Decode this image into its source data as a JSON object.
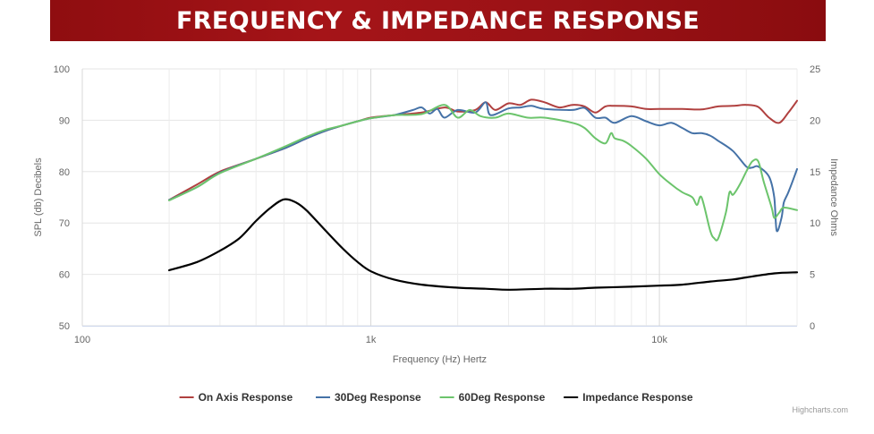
{
  "header": {
    "title": "FREQUENCY & IMPEDANCE RESPONSE"
  },
  "credit": "Highcharts.com",
  "chart_data": {
    "type": "line",
    "x_axis": {
      "label": "Frequency (Hz) Hertz",
      "scale": "log",
      "range": [
        100,
        30000
      ],
      "major_ticks": [
        100,
        1000,
        10000
      ],
      "tick_labels": [
        "100",
        "1k",
        "10k"
      ],
      "minor_grid": [
        200,
        300,
        400,
        500,
        600,
        700,
        800,
        900,
        2000,
        3000,
        4000,
        5000,
        6000,
        7000,
        8000,
        9000,
        20000,
        30000
      ]
    },
    "y_axis_left": {
      "label": "SPL (db) Decibels",
      "range": [
        50,
        100
      ],
      "ticks": [
        50,
        60,
        70,
        80,
        90,
        100
      ]
    },
    "y_axis_right": {
      "label": "Impedance Ohms",
      "range": [
        0,
        25
      ],
      "ticks": [
        0,
        5,
        10,
        15,
        20,
        25
      ]
    },
    "grid": true,
    "legend_position": "bottom-center",
    "series": [
      {
        "name": "On Axis Response",
        "color": "#b0403f",
        "axis": "left",
        "points": [
          [
            200,
            74.5
          ],
          [
            250,
            77.5
          ],
          [
            300,
            80
          ],
          [
            400,
            82.5
          ],
          [
            500,
            84.5
          ],
          [
            600,
            86.5
          ],
          [
            700,
            88
          ],
          [
            800,
            89
          ],
          [
            900,
            89.8
          ],
          [
            1000,
            90.5
          ],
          [
            1200,
            91
          ],
          [
            1500,
            91.5
          ],
          [
            1800,
            92.5
          ],
          [
            2000,
            91.7
          ],
          [
            2300,
            92
          ],
          [
            2500,
            93.5
          ],
          [
            2700,
            92
          ],
          [
            3000,
            93.3
          ],
          [
            3300,
            93
          ],
          [
            3600,
            94
          ],
          [
            4000,
            93.5
          ],
          [
            4500,
            92.5
          ],
          [
            5000,
            93
          ],
          [
            5500,
            92.7
          ],
          [
            6000,
            91.5
          ],
          [
            6500,
            92.7
          ],
          [
            7000,
            92.8
          ],
          [
            8000,
            92.7
          ],
          [
            9000,
            92.2
          ],
          [
            10000,
            92.2
          ],
          [
            12000,
            92.2
          ],
          [
            14000,
            92.1
          ],
          [
            16000,
            92.7
          ],
          [
            18000,
            92.8
          ],
          [
            20000,
            93
          ],
          [
            22000,
            92.6
          ],
          [
            24000,
            90.5
          ],
          [
            26000,
            89.5
          ],
          [
            28000,
            91.5
          ],
          [
            30000,
            93.8
          ]
        ]
      },
      {
        "name": "30Deg Response",
        "color": "#4572a7",
        "axis": "left",
        "points": [
          [
            200,
            74.5
          ],
          [
            250,
            77
          ],
          [
            300,
            79.8
          ],
          [
            400,
            82.5
          ],
          [
            500,
            84.5
          ],
          [
            600,
            86.5
          ],
          [
            700,
            88
          ],
          [
            800,
            89
          ],
          [
            900,
            89.8
          ],
          [
            1000,
            90.4
          ],
          [
            1200,
            91
          ],
          [
            1400,
            92
          ],
          [
            1500,
            92.5
          ],
          [
            1600,
            91.3
          ],
          [
            1700,
            92.2
          ],
          [
            1800,
            90.5
          ],
          [
            2000,
            92
          ],
          [
            2300,
            91.5
          ],
          [
            2500,
            93.5
          ],
          [
            2600,
            91
          ],
          [
            3000,
            92.3
          ],
          [
            3300,
            92.5
          ],
          [
            3600,
            92.8
          ],
          [
            4000,
            92.2
          ],
          [
            5000,
            92
          ],
          [
            5500,
            92.4
          ],
          [
            6000,
            90.5
          ],
          [
            6500,
            90.5
          ],
          [
            7000,
            89.5
          ],
          [
            8000,
            90.8
          ],
          [
            9000,
            89.8
          ],
          [
            10000,
            89
          ],
          [
            11000,
            89.5
          ],
          [
            12000,
            88.5
          ],
          [
            13000,
            87.5
          ],
          [
            14000,
            87.5
          ],
          [
            15000,
            87
          ],
          [
            16000,
            86
          ],
          [
            18000,
            84
          ],
          [
            20000,
            81
          ],
          [
            21000,
            80.8
          ],
          [
            22000,
            81
          ],
          [
            24000,
            79
          ],
          [
            25000,
            75
          ],
          [
            25500,
            68.5
          ],
          [
            26500,
            71
          ],
          [
            27000,
            74
          ],
          [
            28000,
            76
          ],
          [
            30000,
            80.5
          ]
        ]
      },
      {
        "name": "60Deg Response",
        "color": "#6cc46c",
        "axis": "left",
        "points": [
          [
            200,
            74.4
          ],
          [
            250,
            77
          ],
          [
            300,
            79.7
          ],
          [
            400,
            82.5
          ],
          [
            500,
            84.8
          ],
          [
            600,
            86.8
          ],
          [
            700,
            88.2
          ],
          [
            800,
            89
          ],
          [
            900,
            89.8
          ],
          [
            1000,
            90.4
          ],
          [
            1200,
            91
          ],
          [
            1500,
            91.2
          ],
          [
            1800,
            93
          ],
          [
            2000,
            90.5
          ],
          [
            2200,
            92
          ],
          [
            2400,
            90.8
          ],
          [
            2700,
            90.5
          ],
          [
            3000,
            91.3
          ],
          [
            3500,
            90.5
          ],
          [
            4000,
            90.5
          ],
          [
            5000,
            89.5
          ],
          [
            5500,
            88.5
          ],
          [
            6000,
            86.5
          ],
          [
            6500,
            85.5
          ],
          [
            6800,
            87.5
          ],
          [
            7000,
            86.5
          ],
          [
            7500,
            86
          ],
          [
            8000,
            85
          ],
          [
            9000,
            82.5
          ],
          [
            10000,
            79.5
          ],
          [
            11000,
            77.5
          ],
          [
            12000,
            76
          ],
          [
            13000,
            75
          ],
          [
            13500,
            73.5
          ],
          [
            14000,
            75
          ],
          [
            15000,
            68.5
          ],
          [
            15500,
            67
          ],
          [
            16000,
            67
          ],
          [
            17000,
            72
          ],
          [
            17500,
            76
          ],
          [
            18000,
            75.5
          ],
          [
            19000,
            77.5
          ],
          [
            20000,
            80
          ],
          [
            21000,
            82
          ],
          [
            22000,
            82
          ],
          [
            23000,
            78
          ],
          [
            24500,
            73
          ],
          [
            25000,
            71
          ],
          [
            26000,
            72
          ],
          [
            27000,
            73
          ],
          [
            30000,
            72.5
          ]
        ]
      },
      {
        "name": "Impedance Response",
        "color": "#000000",
        "axis": "right",
        "points": [
          [
            200,
            5.4
          ],
          [
            250,
            6.2
          ],
          [
            300,
            7.3
          ],
          [
            350,
            8.5
          ],
          [
            400,
            10.2
          ],
          [
            450,
            11.5
          ],
          [
            500,
            12.3
          ],
          [
            550,
            12
          ],
          [
            600,
            11.2
          ],
          [
            700,
            9.2
          ],
          [
            800,
            7.5
          ],
          [
            900,
            6.2
          ],
          [
            1000,
            5.3
          ],
          [
            1200,
            4.5
          ],
          [
            1500,
            4
          ],
          [
            2000,
            3.7
          ],
          [
            2500,
            3.6
          ],
          [
            3000,
            3.5
          ],
          [
            4000,
            3.6
          ],
          [
            5000,
            3.6
          ],
          [
            6000,
            3.7
          ],
          [
            8000,
            3.8
          ],
          [
            10000,
            3.9
          ],
          [
            12000,
            4
          ],
          [
            15000,
            4.3
          ],
          [
            18000,
            4.5
          ],
          [
            20000,
            4.7
          ],
          [
            25000,
            5.1
          ],
          [
            30000,
            5.2
          ]
        ]
      }
    ]
  }
}
